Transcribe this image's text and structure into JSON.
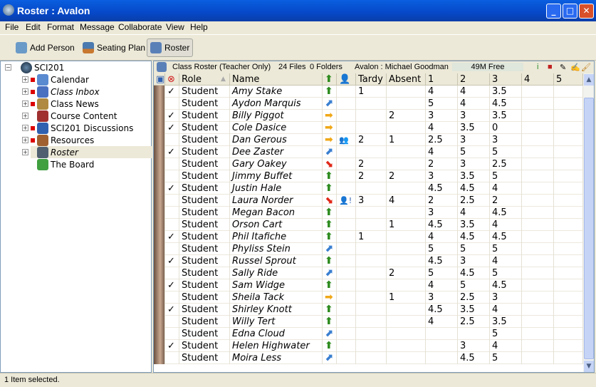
{
  "window": {
    "title": "Roster : Avalon"
  },
  "menu": [
    "File",
    "Edit",
    "Format",
    "Message",
    "Collaborate",
    "View",
    "Help"
  ],
  "toolbar": {
    "add_person": "Add Person",
    "seating_plan": "Seating Plan",
    "roster": "Roster"
  },
  "tree": {
    "root": "SCI201",
    "items": [
      {
        "label": "Calendar",
        "flag": true,
        "italic": false
      },
      {
        "label": "Class Inbox",
        "flag": true,
        "italic": true
      },
      {
        "label": "Class News",
        "flag": true,
        "italic": false
      },
      {
        "label": "Course Content",
        "flag": false,
        "italic": false
      },
      {
        "label": "SCI201 Discussions",
        "flag": true,
        "italic": false
      },
      {
        "label": "Resources",
        "flag": true,
        "italic": false
      },
      {
        "label": "Roster",
        "flag": false,
        "italic": true,
        "selected": true
      },
      {
        "label": "The Board",
        "flag": false,
        "italic": false,
        "leaf": true
      }
    ]
  },
  "info": {
    "title": "Class Roster (Teacher Only)",
    "files": "24 Files",
    "folders": "0 Folders",
    "user": "Avalon : Michael Goodman",
    "free": "49M Free"
  },
  "columns": {
    "role": "Role",
    "name": "Name",
    "tardy": "Tardy",
    "absent": "Absent",
    "g1": "1",
    "g2": "2",
    "g3": "3",
    "g4": "4",
    "g5": "5"
  },
  "trend_colors": {
    "up": "#2e8b1e",
    "ne": "#3a7fd0",
    "right": "#f0a818",
    "down": "#e02818"
  },
  "rows": [
    {
      "check": true,
      "role": "Student",
      "name": "Amy Stake",
      "trend": "up",
      "alert": "",
      "tardy": "1",
      "absent": "",
      "g": [
        "4",
        "4",
        "3.5",
        "",
        ""
      ]
    },
    {
      "check": false,
      "role": "Student",
      "name": "Aydon Marquis",
      "trend": "ne",
      "alert": "",
      "tardy": "",
      "absent": "",
      "g": [
        "5",
        "4",
        "4.5",
        "",
        ""
      ]
    },
    {
      "check": true,
      "role": "Student",
      "name": "Billy Piggot",
      "trend": "right",
      "alert": "",
      "tardy": "",
      "absent": "2",
      "g": [
        "3",
        "3",
        "3.5",
        "",
        ""
      ]
    },
    {
      "check": true,
      "role": "Student",
      "name": "Cole Dasice",
      "trend": "right",
      "alert": "",
      "tardy": "",
      "absent": "",
      "g": [
        "4",
        "3.5",
        "0",
        "",
        ""
      ]
    },
    {
      "check": false,
      "role": "Student",
      "name": "Dan Gerous",
      "trend": "right",
      "alert": "person",
      "tardy": "2",
      "absent": "1",
      "g": [
        "2.5",
        "3",
        "3",
        "",
        ""
      ]
    },
    {
      "check": true,
      "role": "Student",
      "name": "Dee Zaster",
      "trend": "ne",
      "alert": "",
      "tardy": "",
      "absent": "",
      "g": [
        "4",
        "5",
        "5",
        "",
        ""
      ]
    },
    {
      "check": false,
      "role": "Student",
      "name": "Gary Oakey",
      "trend": "down",
      "alert": "",
      "tardy": "2",
      "absent": "",
      "g": [
        "2",
        "3",
        "2.5",
        "",
        ""
      ]
    },
    {
      "check": false,
      "role": "Student",
      "name": "Jimmy Buffet",
      "trend": "up",
      "alert": "",
      "tardy": "2",
      "absent": "2",
      "g": [
        "3",
        "3.5",
        "5",
        "",
        ""
      ]
    },
    {
      "check": true,
      "role": "Student",
      "name": "Justin Hale",
      "trend": "up",
      "alert": "",
      "tardy": "",
      "absent": "",
      "g": [
        "4.5",
        "4.5",
        "4",
        "",
        ""
      ]
    },
    {
      "check": false,
      "role": "Student",
      "name": "Laura Norder",
      "trend": "down",
      "alert": "warning",
      "tardy": "3",
      "absent": "4",
      "g": [
        "2",
        "2.5",
        "2",
        "",
        ""
      ]
    },
    {
      "check": false,
      "role": "Student",
      "name": "Megan Bacon",
      "trend": "up",
      "alert": "",
      "tardy": "",
      "absent": "",
      "g": [
        "3",
        "4",
        "4.5",
        "",
        ""
      ]
    },
    {
      "check": false,
      "role": "Student",
      "name": "Orson Cart",
      "trend": "up",
      "alert": "",
      "tardy": "",
      "absent": "1",
      "g": [
        "4.5",
        "3.5",
        "4",
        "",
        ""
      ]
    },
    {
      "check": true,
      "role": "Student",
      "name": "Phil Itafiche",
      "trend": "up",
      "alert": "",
      "tardy": "1",
      "absent": "",
      "g": [
        "4",
        "4.5",
        "4.5",
        "",
        ""
      ]
    },
    {
      "check": false,
      "role": "Student",
      "name": "Phyliss Stein",
      "trend": "ne",
      "alert": "",
      "tardy": "",
      "absent": "",
      "g": [
        "5",
        "5",
        "5",
        "",
        ""
      ]
    },
    {
      "check": true,
      "role": "Student",
      "name": "Russel Sprout",
      "trend": "up",
      "alert": "",
      "tardy": "",
      "absent": "",
      "g": [
        "4.5",
        "3",
        "4",
        "",
        ""
      ]
    },
    {
      "check": false,
      "role": "Student",
      "name": "Sally Ride",
      "trend": "ne",
      "alert": "",
      "tardy": "",
      "absent": "2",
      "g": [
        "5",
        "4.5",
        "5",
        "",
        ""
      ]
    },
    {
      "check": true,
      "role": "Student",
      "name": "Sam Widge",
      "trend": "up",
      "alert": "",
      "tardy": "",
      "absent": "",
      "g": [
        "4",
        "5",
        "4.5",
        "",
        ""
      ]
    },
    {
      "check": false,
      "role": "Student",
      "name": "Sheila Tack",
      "trend": "right",
      "alert": "",
      "tardy": "",
      "absent": "1",
      "g": [
        "3",
        "2.5",
        "3",
        "",
        ""
      ]
    },
    {
      "check": true,
      "role": "Student",
      "name": "Shirley Knott",
      "trend": "up",
      "alert": "",
      "tardy": "",
      "absent": "",
      "g": [
        "4.5",
        "3.5",
        "4",
        "",
        ""
      ]
    },
    {
      "check": false,
      "role": "Student",
      "name": "Willy Tert",
      "trend": "up",
      "alert": "",
      "tardy": "",
      "absent": "",
      "g": [
        "4",
        "2.5",
        "3.5",
        "",
        ""
      ]
    },
    {
      "check": false,
      "role": "Student",
      "name": "Edna Cloud",
      "trend": "ne",
      "alert": "",
      "tardy": "",
      "absent": "",
      "g": [
        "",
        "",
        "5",
        "",
        ""
      ]
    },
    {
      "check": true,
      "role": "Student",
      "name": "Helen Highwater",
      "trend": "up",
      "alert": "",
      "tardy": "",
      "absent": "",
      "g": [
        "",
        "3",
        "4",
        "",
        ""
      ]
    },
    {
      "check": false,
      "role": "Student",
      "name": "Moira Less",
      "trend": "ne",
      "alert": "",
      "tardy": "",
      "absent": "",
      "g": [
        "",
        "4.5",
        "5",
        "",
        ""
      ]
    }
  ],
  "status": "1 Item selected."
}
